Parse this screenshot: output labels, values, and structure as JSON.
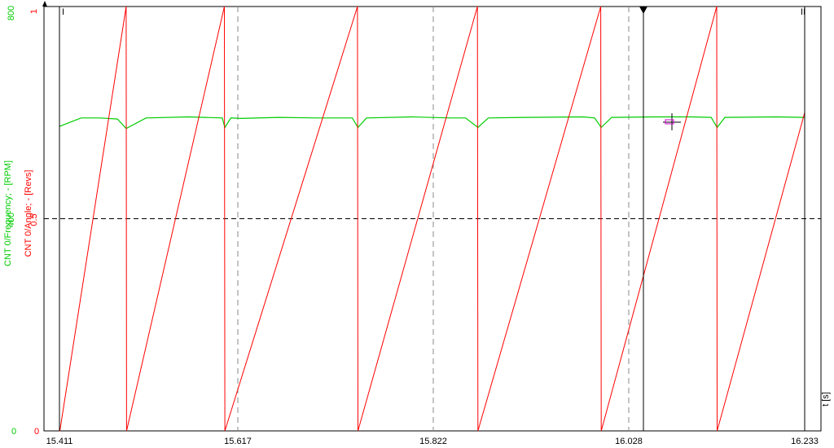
{
  "chart_data": {
    "type": "line",
    "xlabel": "t [s]",
    "x_ticks": [
      "15.411",
      "15.617",
      "15.822",
      "16.028",
      "16.233"
    ],
    "xlim": [
      15.411,
      16.233
    ],
    "axes": [
      {
        "label": "CNT 0/Frequency; - [RPM]",
        "color": "#00cc00",
        "ticks": [
          "0",
          "400",
          "800"
        ],
        "ylim": [
          0,
          800
        ]
      },
      {
        "label": "CNT 0/Angle; - [Revs]",
        "color": "#ff0000",
        "ticks": [
          "0",
          "0.5",
          "1"
        ],
        "ylim": [
          0,
          1
        ]
      }
    ],
    "series": [
      {
        "label": "CNT 0/Frequency; - [RPM]",
        "color": "#00cc00",
        "x": [
          15.411,
          15.436,
          15.458,
          15.478,
          15.488,
          15.511,
          15.56,
          15.599,
          15.602,
          15.609,
          15.62,
          15.66,
          15.7,
          15.737,
          15.743,
          15.752,
          15.8,
          15.84,
          15.856,
          15.869,
          15.88,
          15.92,
          15.98,
          15.992,
          15.999,
          16.01,
          16.06,
          16.1,
          16.124,
          16.131,
          16.14,
          16.2,
          16.233
        ],
        "y": [
          574,
          590,
          590,
          588,
          570,
          590,
          592,
          590,
          572,
          590,
          589,
          591,
          590,
          590,
          572,
          590,
          592,
          590,
          590,
          572,
          590,
          591,
          592,
          590,
          572,
          591,
          592,
          592,
          591,
          572,
          591,
          592,
          591
        ]
      },
      {
        "label": "CNT 0/Angle; - [Revs]",
        "color": "#ff0000",
        "x": [
          15.411,
          15.4115,
          15.488,
          15.4885,
          15.6015,
          15.602,
          15.7425,
          15.743,
          15.8685,
          15.869,
          15.9985,
          15.999,
          16.1305,
          16.131,
          16.233
        ],
        "y": [
          0.0,
          0.0,
          1.0,
          0.0,
          1.0,
          0.0,
          1.0,
          0.0,
          1.0,
          0.0,
          1.0,
          0.0,
          1.0,
          0.0,
          0.75
        ]
      }
    ],
    "horizontal_reference": {
      "value": 0.5,
      "axis": "CNT 0/Angle; - [Revs]",
      "style": "dashed"
    },
    "cursor_markers": [
      "I",
      "II"
    ],
    "grid": false
  }
}
